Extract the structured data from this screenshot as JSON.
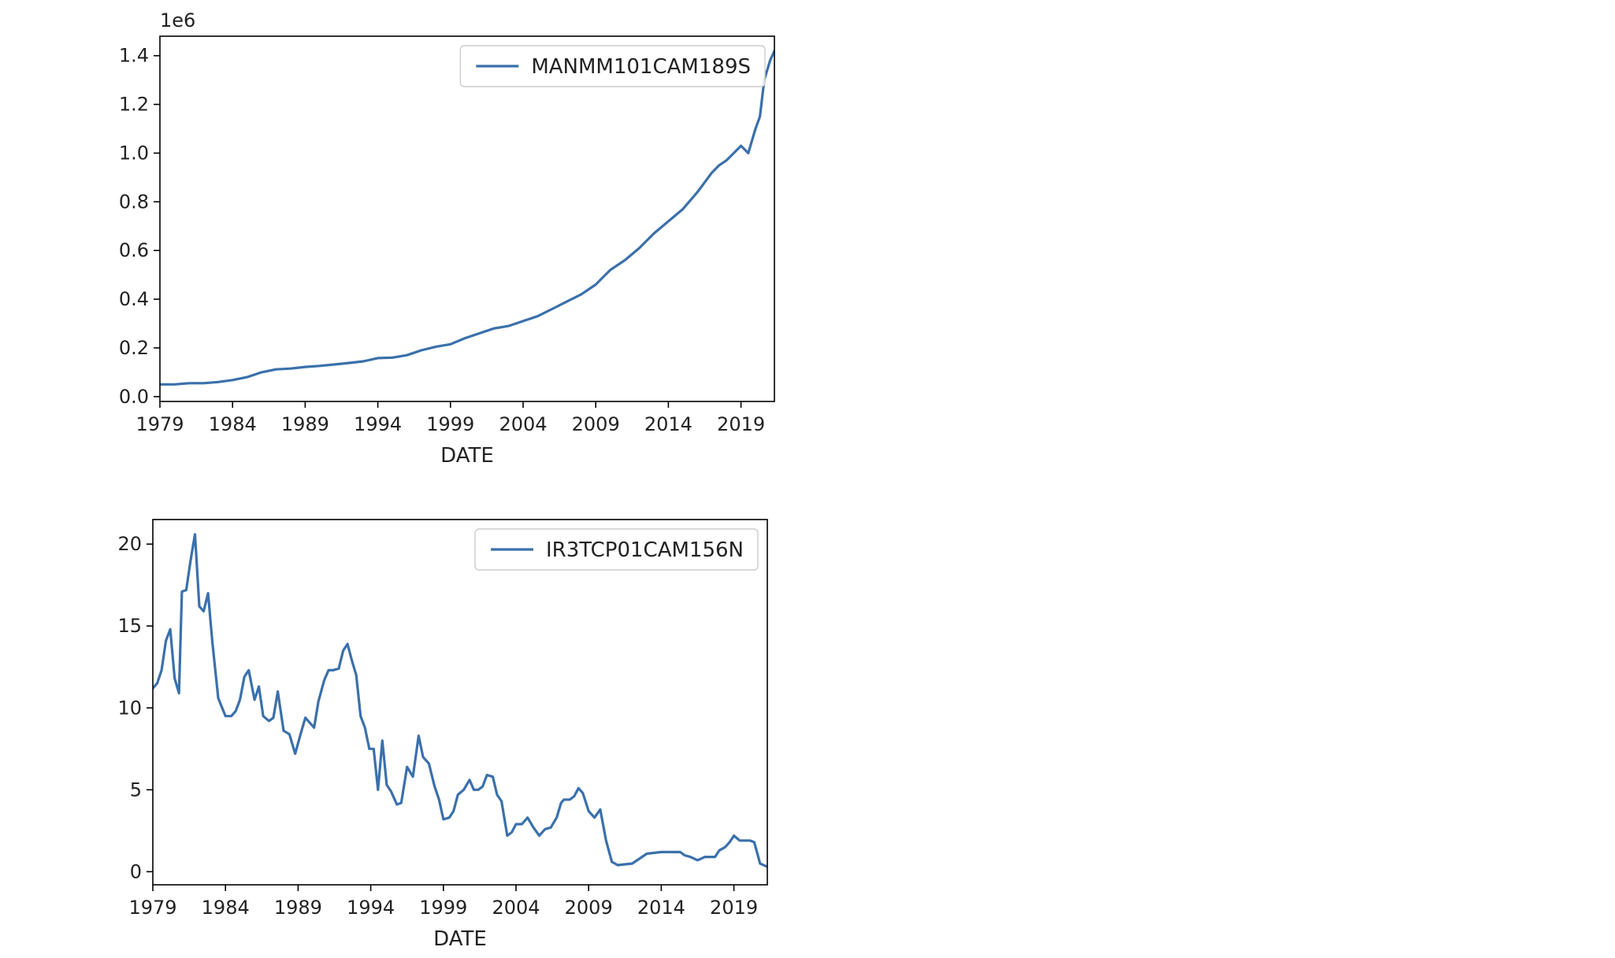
{
  "chart_data": [
    {
      "type": "line",
      "xlabel": "DATE",
      "ylabel": "",
      "offset_text": "1e6",
      "xlim": [
        1979,
        2021.3
      ],
      "ylim": [
        -0.02,
        1.48
      ],
      "xticks": [
        1979,
        1984,
        1989,
        1994,
        1999,
        2004,
        2009,
        2014,
        2019
      ],
      "xtick_labels": [
        "1979",
        "1984",
        "1989",
        "1994",
        "1999",
        "2004",
        "2009",
        "2014",
        "2019"
      ],
      "yticks": [
        0.0,
        0.2,
        0.4,
        0.6,
        0.8,
        1.0,
        1.2,
        1.4
      ],
      "ytick_labels": [
        "0.0",
        "0.2",
        "0.4",
        "0.6",
        "0.8",
        "1.0",
        "1.2",
        "1.4"
      ],
      "legend_position": "upper right",
      "grid": false,
      "series": [
        {
          "name": "MANMM101CAM189S",
          "color": "#3a70ab",
          "x": [
            1979,
            1980,
            1981,
            1982,
            1983,
            1984,
            1985,
            1986,
            1987,
            1988,
            1989,
            1990,
            1991,
            1992,
            1993,
            1994,
            1995,
            1996,
            1997,
            1998,
            1999,
            2000,
            2001,
            2002,
            2003,
            2004,
            2005,
            2006,
            2007,
            2008,
            2009,
            2010,
            2011,
            2012,
            2013,
            2014,
            2015,
            2016,
            2017,
            2017.5,
            2018,
            2018.5,
            2019,
            2019.5,
            2020,
            2020.3,
            2020.6,
            2021,
            2021.3
          ],
          "y": [
            0.05,
            0.05,
            0.055,
            0.055,
            0.06,
            0.068,
            0.08,
            0.1,
            0.112,
            0.115,
            0.122,
            0.126,
            0.132,
            0.138,
            0.145,
            0.158,
            0.16,
            0.17,
            0.19,
            0.205,
            0.215,
            0.24,
            0.26,
            0.28,
            0.29,
            0.31,
            0.33,
            0.36,
            0.39,
            0.42,
            0.46,
            0.52,
            0.56,
            0.61,
            0.67,
            0.72,
            0.77,
            0.84,
            0.92,
            0.95,
            0.97,
            1.0,
            1.03,
            1.0,
            1.1,
            1.15,
            1.3,
            1.38,
            1.42
          ]
        }
      ]
    },
    {
      "type": "line",
      "xlabel": "DATE",
      "ylabel": "",
      "xlim": [
        1979,
        2021.3
      ],
      "ylim": [
        -0.8,
        21.5
      ],
      "xticks": [
        1979,
        1984,
        1989,
        1994,
        1999,
        2004,
        2009,
        2014,
        2019
      ],
      "xtick_labels": [
        "1979",
        "1984",
        "1989",
        "1994",
        "1999",
        "2004",
        "2009",
        "2014",
        "2019"
      ],
      "yticks": [
        0,
        5,
        10,
        15,
        20
      ],
      "ytick_labels": [
        "0",
        "5",
        "10",
        "15",
        "20"
      ],
      "legend_position": "upper right",
      "grid": false,
      "series": [
        {
          "name": "IR3TCP01CAM156N",
          "color": "#3a70ab",
          "x": [
            1979,
            1979.3,
            1979.6,
            1979.9,
            1980.2,
            1980.5,
            1980.8,
            1981.0,
            1981.3,
            1981.6,
            1981.9,
            1982.2,
            1982.5,
            1982.8,
            1983.1,
            1983.5,
            1984.0,
            1984.4,
            1984.7,
            1985.0,
            1985.3,
            1985.6,
            1986.0,
            1986.3,
            1986.6,
            1987.0,
            1987.3,
            1987.6,
            1988.0,
            1988.4,
            1988.8,
            1989.2,
            1989.5,
            1989.8,
            1990.1,
            1990.4,
            1990.8,
            1991.1,
            1991.4,
            1991.8,
            1992.1,
            1992.4,
            1992.7,
            1993.0,
            1993.3,
            1993.6,
            1993.9,
            1994.2,
            1994.5,
            1994.8,
            1995.1,
            1995.4,
            1995.8,
            1996.1,
            1996.5,
            1996.9,
            1997.3,
            1997.6,
            1998.0,
            1998.4,
            1998.7,
            1999.0,
            1999.4,
            1999.7,
            2000.0,
            2000.4,
            2000.8,
            2001.1,
            2001.4,
            2001.7,
            2002.0,
            2002.4,
            2002.7,
            2003.0,
            2003.4,
            2003.7,
            2004.0,
            2004.4,
            2004.8,
            2005.2,
            2005.6,
            2006.0,
            2006.4,
            2006.8,
            2007.1,
            2007.3,
            2007.7,
            2008.0,
            2008.3,
            2008.6,
            2009.0,
            2009.4,
            2009.8,
            2010.2,
            2010.6,
            2011.0,
            2012.0,
            2013.0,
            2014.0,
            2014.5,
            2015.0,
            2015.3,
            2015.6,
            2016.0,
            2016.5,
            2017.0,
            2017.3,
            2017.7,
            2018.0,
            2018.4,
            2018.7,
            2019.0,
            2019.4,
            2019.8,
            2020.1,
            2020.4,
            2020.8,
            2021.3
          ],
          "y": [
            11.2,
            11.5,
            12.3,
            14.1,
            14.8,
            11.8,
            10.9,
            17.1,
            17.2,
            19.0,
            20.6,
            16.2,
            15.9,
            17.0,
            14.0,
            10.6,
            9.5,
            9.5,
            9.8,
            10.5,
            11.9,
            12.3,
            10.5,
            11.3,
            9.5,
            9.2,
            9.4,
            11.0,
            8.6,
            8.4,
            7.2,
            8.5,
            9.4,
            9.1,
            8.8,
            10.4,
            11.7,
            12.3,
            12.3,
            12.4,
            13.5,
            13.9,
            12.9,
            12.0,
            9.5,
            8.8,
            7.5,
            7.5,
            5.0,
            8.0,
            5.3,
            4.9,
            4.1,
            4.2,
            6.4,
            5.8,
            8.3,
            7.0,
            6.6,
            5.2,
            4.4,
            3.2,
            3.3,
            3.7,
            4.7,
            5.0,
            5.6,
            5.0,
            5.0,
            5.2,
            5.9,
            5.8,
            4.7,
            4.3,
            2.2,
            2.4,
            2.9,
            2.9,
            3.3,
            2.7,
            2.2,
            2.6,
            2.7,
            3.3,
            4.2,
            4.4,
            4.4,
            4.6,
            5.1,
            4.8,
            3.7,
            3.3,
            3.8,
            1.9,
            0.6,
            0.4,
            0.5,
            1.1,
            1.2,
            1.2,
            1.2,
            1.2,
            1.0,
            0.9,
            0.7,
            0.9,
            0.9,
            0.9,
            1.3,
            1.5,
            1.8,
            2.2,
            1.9,
            1.9,
            1.9,
            1.8,
            0.5,
            0.3
          ]
        }
      ]
    }
  ]
}
